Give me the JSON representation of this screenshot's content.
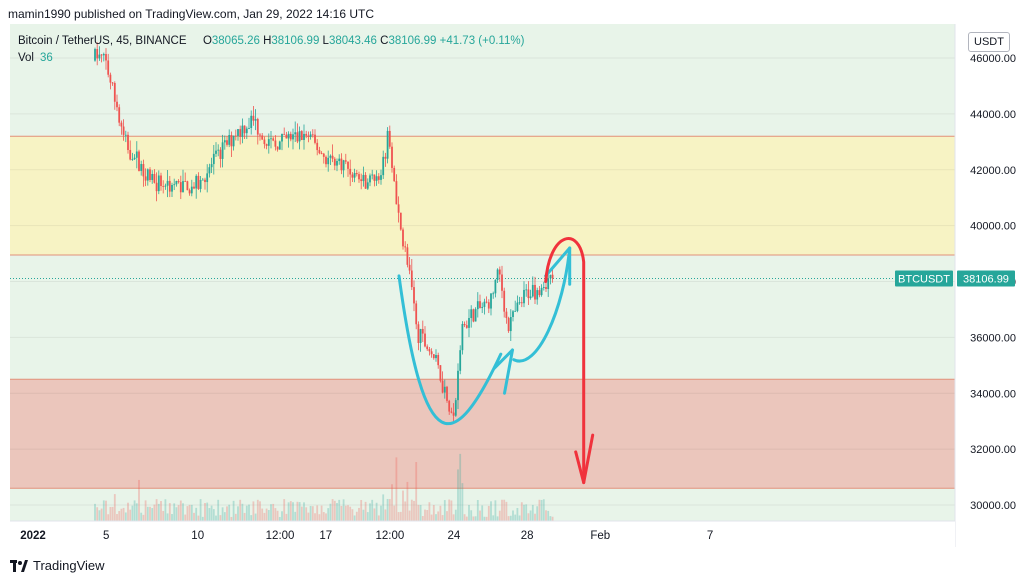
{
  "header": {
    "published": "mamin1990 published on TradingView.com, Jan 29, 2022 14:16 UTC"
  },
  "legend": {
    "symbol": "Bitcoin / TetherUS, 45, BINANCE",
    "o_label": "O",
    "o": "38065.26",
    "h_label": "H",
    "h": "38106.99",
    "l_label": "L",
    "l": "38043.46",
    "c_label": "C",
    "c": "38106.99",
    "change": "+41.73 (+0.11%)",
    "vol_label": "Vol",
    "vol": "36"
  },
  "currency_button": "USDT",
  "price_tag": {
    "symbol": "BTCUSDT",
    "price": "38106.99"
  },
  "footer": {
    "brand": "TradingView"
  },
  "colors": {
    "up": "#26a69a",
    "down": "#ef5350",
    "resistance_zone": "#f7f3c4",
    "support_zone": "#ebc6bc",
    "mid_zone": "#e8f4e9",
    "cyan_arrow": "#33bfd6",
    "red_arrow": "#f0323c"
  },
  "chart_data": {
    "type": "candlestick",
    "symbol": "BTCUSDT",
    "timeframe": "45",
    "y_ticks": [
      "46000.00",
      "44000.00",
      "42000.00",
      "40000.00",
      "38000.00",
      "36000.00",
      "34000.00",
      "32000.00",
      "30000.00"
    ],
    "x_ticks": [
      "2022",
      "5",
      "10",
      "12:00",
      "17",
      "12:00",
      "24",
      "28",
      "Feb",
      "7"
    ],
    "ylim": [
      29500,
      47000
    ],
    "zones": [
      {
        "name": "resistance",
        "from": 38950,
        "to": 43200
      },
      {
        "name": "support",
        "from": 30600,
        "to": 34500
      }
    ],
    "last_price": 38106.99,
    "price_path": [
      {
        "date": "2022-01-01",
        "price": 46700
      },
      {
        "date": "2022-01-04",
        "price": 46400
      },
      {
        "date": "2022-01-05",
        "price": 45800
      },
      {
        "date": "2022-01-06",
        "price": 43000
      },
      {
        "date": "2022-01-07",
        "price": 42000
      },
      {
        "date": "2022-01-08",
        "price": 41500
      },
      {
        "date": "2022-01-10",
        "price": 41400
      },
      {
        "date": "2022-01-11",
        "price": 42400
      },
      {
        "date": "2022-01-12",
        "price": 43300
      },
      {
        "date": "2022-01-13",
        "price": 43800
      },
      {
        "date": "2022-01-14",
        "price": 42800
      },
      {
        "date": "2022-01-15",
        "price": 43100
      },
      {
        "date": "2022-01-16",
        "price": 43200
      },
      {
        "date": "2022-01-17",
        "price": 42400
      },
      {
        "date": "2022-01-18",
        "price": 42200
      },
      {
        "date": "2022-01-19",
        "price": 41600
      },
      {
        "date": "2022-01-20",
        "price": 41800
      },
      {
        "date": "2022-01-20",
        "price": 43300
      },
      {
        "date": "2022-01-21",
        "price": 40200
      },
      {
        "date": "2022-01-21",
        "price": 38800
      },
      {
        "date": "2022-01-22",
        "price": 36200
      },
      {
        "date": "2022-01-23",
        "price": 35200
      },
      {
        "date": "2022-01-24",
        "price": 33000
      },
      {
        "date": "2022-01-24",
        "price": 36300
      },
      {
        "date": "2022-01-25",
        "price": 36800
      },
      {
        "date": "2022-01-26",
        "price": 37300
      },
      {
        "date": "2022-01-26",
        "price": 38400
      },
      {
        "date": "2022-01-27",
        "price": 36400
      },
      {
        "date": "2022-01-28",
        "price": 37600
      },
      {
        "date": "2022-01-29",
        "price": 38107
      }
    ],
    "annotations": [
      {
        "type": "curve",
        "color": "cyan",
        "shape": "U",
        "from": "2022-01-21",
        "to": "2022-01-27",
        "low": 32300
      },
      {
        "type": "arrow",
        "color": "cyan",
        "from_price": 34000,
        "to_price": 35500,
        "at": "2022-01-26"
      },
      {
        "type": "curve-arrow",
        "color": "cyan",
        "from_price": 35200,
        "to_price": 39200,
        "at": "2022-01-28 to 2022-01-30"
      },
      {
        "type": "arrow",
        "color": "red",
        "from_price": 38000,
        "to_price": 30800,
        "at": "2022-01-30"
      }
    ]
  }
}
